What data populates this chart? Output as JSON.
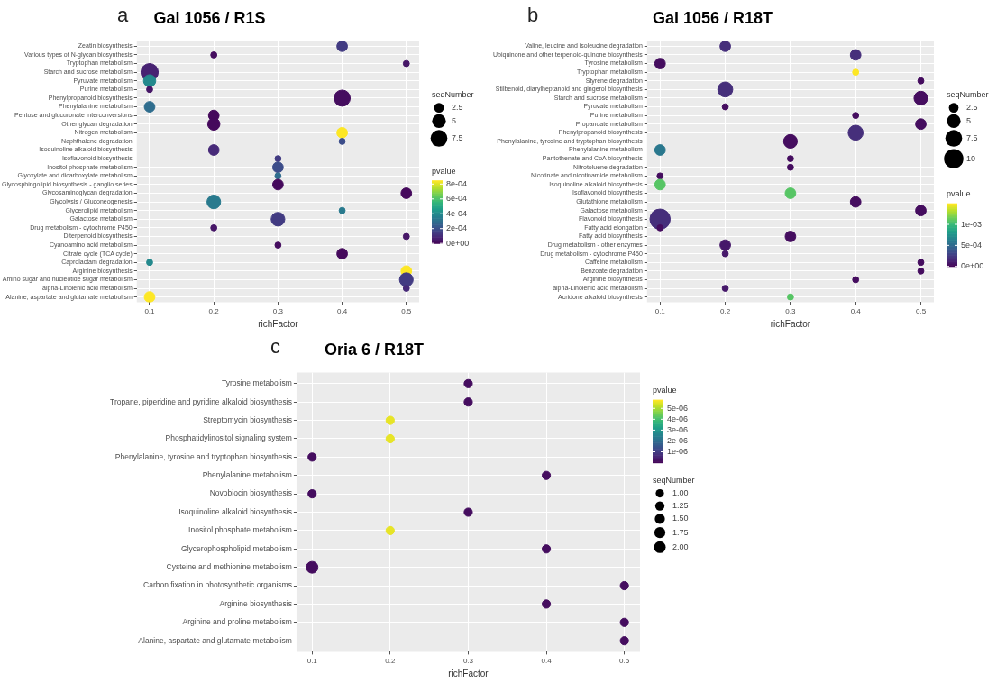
{
  "chart_data": [
    {
      "type": "bubble",
      "title": "Gal 1056 / R1S",
      "annotations": [
        "a"
      ],
      "xlabel": "richFactor",
      "legend_title": "seqNumber",
      "clabel": "pvalue",
      "orientation": "horizontal",
      "categories": [
        "Zeatin biosynthesis",
        "Various types of N-glycan biosynthesis",
        "Tryptophan metabolism",
        "Starch and sucrose metabolism",
        "Pyruvate metabolism",
        "Purine metabolism",
        "Phenylpropanoid biosynthesis",
        "Phenylalanine metabolism",
        "Pentose and glucuronate interconversions",
        "Other glycan degradation",
        "Nitrogen metabolism",
        "Naphthalene degradation",
        "Isoquinoline alkaloid biosynthesis",
        "Isoflavonoid biosynthesis",
        "Inositol phosphate metabolism",
        "Glyoxylate and dicarboxylate metabolism",
        "Glycosphingolipid biosynthesis - ganglio series",
        "Glycosaminoglycan degradation",
        "Glycolysis / Gluconeogenesis",
        "Glycerolipid metabolism",
        "Galactose metabolism",
        "Drug metabolism - cytochrome P450",
        "Diterpenoid biosynthesis",
        "Cyanoamino acid metabolism",
        "Citrate cycle (TCA cycle)",
        "Caprolactam degradation",
        "Arginine biosynthesis",
        "Amino sugar and nucleotide sugar metabolism",
        "alpha-Linolenic acid metabolism",
        "Alanine, aspartate and glutamate metabolism"
      ],
      "values": [
        0.4,
        0.2,
        0.5,
        0.1,
        0.1,
        0.1,
        0.4,
        0.1,
        0.2,
        0.2,
        0.4,
        0.4,
        0.2,
        0.3,
        0.3,
        0.3,
        0.3,
        0.5,
        0.2,
        0.4,
        0.3,
        0.2,
        0.5,
        0.3,
        0.4,
        0.1,
        0.5,
        0.5,
        0.5,
        0.1
      ],
      "sizes": [
        3,
        1,
        1,
        8,
        4,
        1,
        7,
        3,
        3,
        4,
        3,
        1,
        3,
        1,
        3,
        1,
        3,
        3,
        5,
        1,
        5,
        1,
        1,
        1,
        3,
        1,
        3,
        5,
        1,
        3
      ],
      "cvalues": [
        0.00015,
        3e-05,
        5e-05,
        8e-05,
        0.0004,
        5e-05,
        3e-05,
        0.0003,
        2e-05,
        2e-05,
        0.00085,
        0.0002,
        0.0001,
        0.00015,
        0.0002,
        0.0003,
        2e-05,
        2e-05,
        0.00035,
        0.00035,
        0.00015,
        5e-05,
        5e-05,
        3e-05,
        2e-05,
        0.0004,
        0.00085,
        0.00015,
        0.0001,
        0.00085
      ],
      "size_legend": [
        2.5,
        5.0,
        7.5
      ],
      "clim": [
        0,
        0.00085
      ],
      "cticks": [
        {
          "value": 0,
          "label": "0e+00"
        },
        {
          "value": 0.0002,
          "label": "2e-04"
        },
        {
          "value": 0.0004,
          "label": "4e-04"
        },
        {
          "value": 0.0006,
          "label": "6e-04"
        },
        {
          "value": 0.0008,
          "label": "8e-04"
        }
      ],
      "xlim": [
        0.08,
        0.52
      ],
      "xticks": [
        0.1,
        0.2,
        0.3,
        0.4,
        0.5
      ],
      "grid": true,
      "marker": "circle"
    },
    {
      "type": "bubble",
      "title": "Gal 1056 / R18T",
      "annotations": [
        "b"
      ],
      "xlabel": "richFactor",
      "legend_title": "seqNumber",
      "clabel": "pvalue",
      "orientation": "horizontal",
      "categories": [
        "Valine, leucine and isoleucine degradation",
        "Ubiquinone and other terpenoid-quinone biosynthesis",
        "Tyrosine metabolism",
        "Tryptophan metabolism",
        "Styrene degradation",
        "Stilbenoid, diarylheptanoid and gingerol biosynthesis",
        "Starch and sucrose metabolism",
        "Pyruvate metabolism",
        "Purine metabolism",
        "Propanoate metabolism",
        "Phenylpropanoid biosynthesis",
        "Phenylalanine, tyrosine and tryptophan biosynthesis",
        "Phenylalanine metabolism",
        "Pantothenate and CoA biosynthesis",
        "Nitrotoluene degradation",
        "Nicotinate and nicotinamide metabolism",
        "Isoquinoline alkaloid biosynthesis",
        "Isoflavonoid biosynthesis",
        "Glutathione metabolism",
        "Galactose metabolism",
        "Flavonoid biosynthesis",
        "Fatty acid elongation",
        "Fatty acid biosynthesis",
        "Drug metabolism - other enzymes",
        "Drug metabolism - cytochrome P450",
        "Caffeine metabolism",
        "Benzoate degradation",
        "Arginine biosynthesis",
        "alpha-Linolenic acid metabolism",
        "Acridone alkaloid biosynthesis"
      ],
      "values": [
        0.2,
        0.4,
        0.1,
        0.4,
        0.5,
        0.2,
        0.5,
        0.2,
        0.4,
        0.5,
        0.4,
        0.3,
        0.1,
        0.3,
        0.3,
        0.1,
        0.1,
        0.3,
        0.4,
        0.5,
        0.1,
        0.1,
        0.3,
        0.2,
        0.2,
        0.5,
        0.5,
        0.4,
        0.2,
        0.3
      ],
      "sizes": [
        3,
        3,
        3,
        1,
        1,
        6,
        5,
        1,
        1,
        3,
        6,
        5,
        3,
        1,
        1,
        1,
        3,
        3,
        3,
        3,
        11,
        1,
        3,
        3,
        1,
        1,
        1,
        1,
        1,
        1
      ],
      "cvalues": [
        0.0002,
        0.0002,
        5e-05,
        0.0015,
        5e-05,
        0.0002,
        5e-05,
        5e-05,
        5e-05,
        5e-05,
        0.0002,
        5e-05,
        0.0006,
        5e-05,
        5e-05,
        5e-05,
        0.0011,
        0.0011,
        5e-05,
        5e-05,
        0.0002,
        5e-05,
        5e-05,
        0.0001,
        0.0001,
        5e-05,
        5e-05,
        5e-05,
        0.0001,
        0.0011
      ],
      "size_legend": [
        2.5,
        5.0,
        7.5,
        10.0
      ],
      "clim": [
        0,
        0.0015
      ],
      "cticks": [
        {
          "value": 0,
          "label": "0e+00"
        },
        {
          "value": 0.0005,
          "label": "5e-04"
        },
        {
          "value": 0.001,
          "label": "1e-03"
        }
      ],
      "xlim": [
        0.08,
        0.52
      ],
      "xticks": [
        0.1,
        0.2,
        0.3,
        0.4,
        0.5
      ],
      "grid": true,
      "marker": "circle"
    },
    {
      "type": "bubble",
      "title": "Oria 6 / R18T",
      "annotations": [
        "c"
      ],
      "xlabel": "richFactor",
      "legend_title": "seqNumber",
      "clabel": "pvalue",
      "orientation": "horizontal",
      "categories": [
        "Tyrosine metabolism",
        "Tropane, piperidine and pyridine alkaloid biosynthesis",
        "Streptomycin biosynthesis",
        "Phosphatidylinositol signaling system",
        "Phenylalanine, tyrosine and tryptophan biosynthesis",
        "Phenylalanine metabolism",
        "Novobiocin biosynthesis",
        "Isoquinoline alkaloid biosynthesis",
        "Inositol phosphate metabolism",
        "Glycerophospholipid metabolism",
        "Cysteine and methionine metabolism",
        "Carbon fixation in photosynthetic organisms",
        "Arginine biosynthesis",
        "Arginine and proline metabolism",
        "Alanine, aspartate and glutamate metabolism"
      ],
      "values": [
        0.3,
        0.3,
        0.2,
        0.2,
        0.1,
        0.4,
        0.1,
        0.3,
        0.2,
        0.4,
        0.1,
        0.5,
        0.4,
        0.5,
        0.5
      ],
      "sizes": [
        1,
        1,
        1,
        1,
        1,
        1,
        1,
        1,
        1,
        1,
        2,
        1,
        1,
        1,
        1
      ],
      "cvalues": [
        2e-07,
        2e-07,
        5.6e-06,
        5.6e-06,
        2e-07,
        2e-07,
        2e-07,
        2e-07,
        5.6e-06,
        2e-07,
        2e-07,
        2e-07,
        2e-07,
        2e-07,
        2e-07
      ],
      "size_legend": [
        {
          "value": 1,
          "label": "1.00"
        },
        {
          "value": 1.25,
          "label": "1.25"
        },
        {
          "value": 1.5,
          "label": "1.50"
        },
        {
          "value": 1.75,
          "label": "1.75"
        },
        {
          "value": 2,
          "label": "2.00"
        }
      ],
      "clim": [
        0,
        5.8e-06
      ],
      "cticks": [
        {
          "value": 1e-06,
          "label": "1e-06"
        },
        {
          "value": 2e-06,
          "label": "2e-06"
        },
        {
          "value": 3e-06,
          "label": "3e-06"
        },
        {
          "value": 4e-06,
          "label": "4e-06"
        },
        {
          "value": 5e-06,
          "label": "5e-06"
        }
      ],
      "xlim": [
        0.08,
        0.52
      ],
      "xticks": [
        0.1,
        0.2,
        0.3,
        0.4,
        0.5
      ],
      "grid": true,
      "marker": "circle"
    }
  ]
}
